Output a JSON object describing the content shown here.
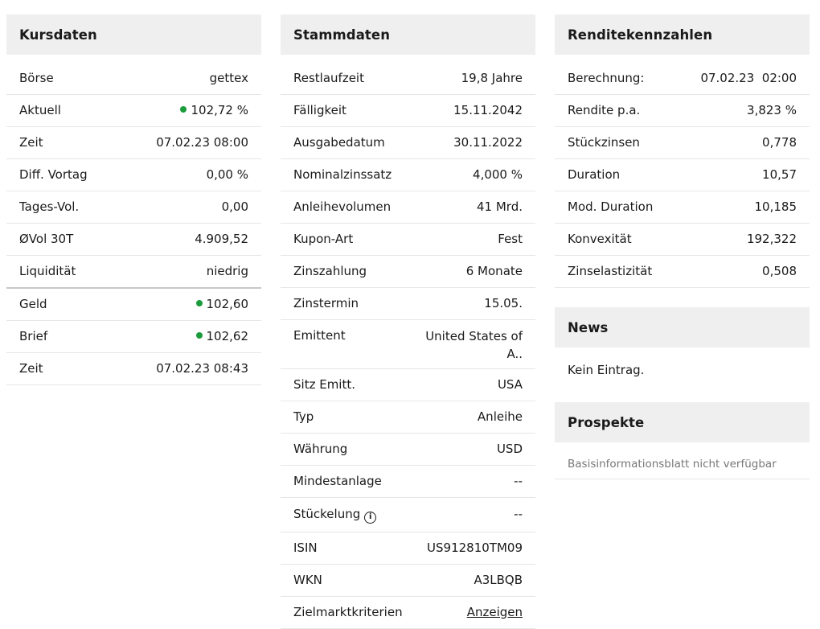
{
  "kursdaten": {
    "title": "Kursdaten",
    "rows": [
      {
        "label": "Börse",
        "value": "gettex"
      },
      {
        "label": "Aktuell",
        "value": "102,72 %"
      },
      {
        "label": "Zeit",
        "value": "07.02.23 08:00"
      },
      {
        "label": "Diff. Vortag",
        "value": "0,00 %"
      },
      {
        "label": "Tages-Vol.",
        "value": "0,00"
      },
      {
        "label": "ØVol 30T",
        "value": "4.909,52"
      },
      {
        "label": "Liquidität",
        "value": "niedrig"
      },
      {
        "label": "Geld",
        "value": "102,60"
      },
      {
        "label": "Brief",
        "value": "102,62"
      },
      {
        "label": "Zeit",
        "value": "07.02.23 08:43"
      }
    ],
    "status_color": "#1a9b3c"
  },
  "stammdaten": {
    "title": "Stammdaten",
    "rows": [
      {
        "label": "Restlaufzeit",
        "value": "19,8 Jahre"
      },
      {
        "label": "Fälligkeit",
        "value": "15.11.2042"
      },
      {
        "label": "Ausgabedatum",
        "value": "30.11.2022"
      },
      {
        "label": "Nominalzinssatz",
        "value": "4,000 %"
      },
      {
        "label": "Anleihevolumen",
        "value": "41 Mrd."
      },
      {
        "label": "Kupon-Art",
        "value": "Fest"
      },
      {
        "label": "Zinszahlung",
        "value": "6 Monate"
      },
      {
        "label": "Zinstermin",
        "value": "15.05."
      },
      {
        "label": "Emittent",
        "value": "United States of A.."
      },
      {
        "label": "Sitz Emitt.",
        "value": "USA"
      },
      {
        "label": "Typ",
        "value": "Anleihe"
      },
      {
        "label": "Währung",
        "value": "USD"
      },
      {
        "label": "Mindestanlage",
        "value": "--"
      },
      {
        "label": "Stückelung",
        "value": "--",
        "icon": "info-icon"
      },
      {
        "label": "ISIN",
        "value": "US912810TM09"
      },
      {
        "label": "WKN",
        "value": "A3LBQB"
      },
      {
        "label": "Zielmarktkriterien",
        "value": "Anzeigen"
      }
    ]
  },
  "rendite": {
    "title": "Renditekennzahlen",
    "rows": [
      {
        "label": "Berechnung:",
        "value": "07.02.23  02:00"
      },
      {
        "label": "Rendite p.a.",
        "value": "3,823 %"
      },
      {
        "label": "Stückzinsen",
        "value": "0,778"
      },
      {
        "label": "Duration",
        "value": "10,57"
      },
      {
        "label": "Mod. Duration",
        "value": "10,185"
      },
      {
        "label": "Konvexität",
        "value": "192,322"
      },
      {
        "label": "Zinselastizität",
        "value": "0,508"
      }
    ]
  },
  "news": {
    "title": "News",
    "text": "Kein Eintrag."
  },
  "prospekte": {
    "title": "Prospekte",
    "text": "Basisinformationsblatt nicht verfügbar"
  }
}
